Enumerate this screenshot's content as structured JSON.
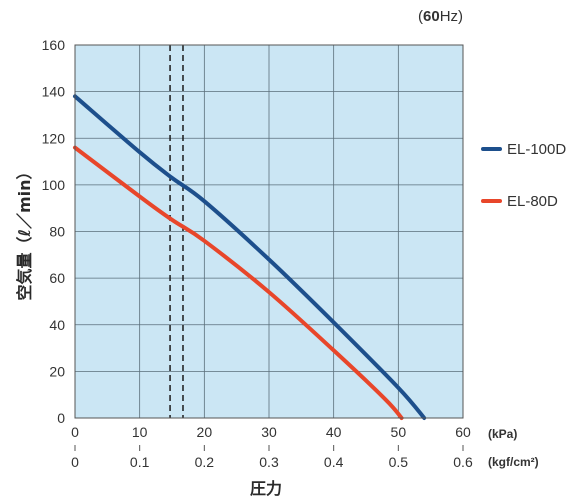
{
  "chart_data": {
    "type": "line",
    "frequency_note": {
      "open": "(",
      "value": "60",
      "unit": "Hz)"
    },
    "ylabel": "空気量（ℓ／min）",
    "xlabel": "圧力",
    "x_unit_primary": "(kPa)",
    "x_unit_secondary": "(kgf/cm²)",
    "xlim": [
      0,
      60
    ],
    "ylim": [
      0,
      160
    ],
    "x_ticks_kpa": [
      "0",
      "10",
      "20",
      "30",
      "40",
      "50",
      "60"
    ],
    "x_ticks_kgf": [
      "0",
      "0.1",
      "0.2",
      "0.3",
      "0.4",
      "0.5",
      "0.6"
    ],
    "y_ticks": [
      "0",
      "20",
      "40",
      "60",
      "80",
      "100",
      "120",
      "140",
      "160"
    ],
    "grid": true,
    "background_color": "#cbe6f4",
    "reference_lines_kpa": [
      14.7,
      16.7
    ],
    "legend_position": "right",
    "series": [
      {
        "name": "EL-100D",
        "color": "#1d4f8c",
        "x": [
          0,
          10,
          15,
          20,
          30,
          40,
          50,
          54
        ],
        "y": [
          138,
          114,
          103,
          93,
          68,
          41,
          13,
          0
        ]
      },
      {
        "name": "EL-80D",
        "color": "#e8462a",
        "x": [
          0,
          10,
          15,
          20,
          30,
          40,
          48,
          50.5
        ],
        "y": [
          116,
          95,
          85,
          76,
          54,
          29,
          8,
          0
        ]
      }
    ]
  }
}
